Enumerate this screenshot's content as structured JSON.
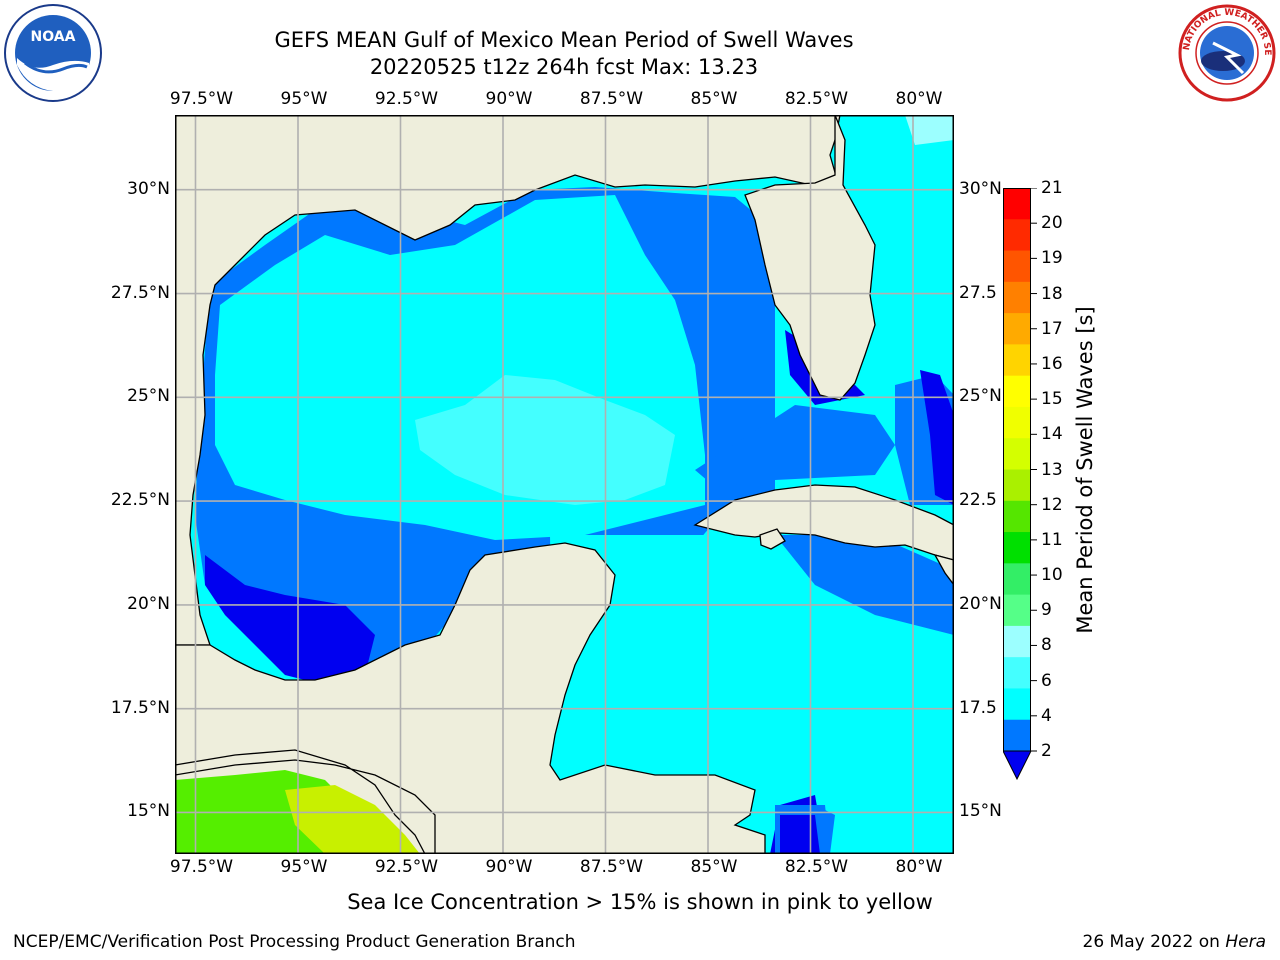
{
  "header": {
    "title": "GEFS MEAN Gulf of Mexico Mean Period of Swell Waves",
    "subtitle": "20220525 t12z 264h fcst   Max: 13.23"
  },
  "logos": {
    "left": {
      "icon": "noaa-logo",
      "text": "NOAA"
    },
    "right": {
      "icon": "nws-logo",
      "text": "NATIONAL WEATHER SERVICE"
    }
  },
  "map": {
    "lon_labels": [
      "97.5°W",
      "95°W",
      "92.5°W",
      "90°W",
      "87.5°W",
      "85°W",
      "82.5°W",
      "80°W"
    ],
    "lat_labels_left": [
      "30°N",
      "27.5°N",
      "25°N",
      "22.5°N",
      "20°N",
      "17.5°N",
      "15°N"
    ],
    "lat_labels_right": [
      "30°N",
      "27.5",
      "25°N",
      "22.5",
      "20°N",
      "17.5",
      "15°N"
    ],
    "lon_range": [
      -98,
      -79
    ],
    "lat_range": [
      14,
      31.8
    ],
    "colors": {
      "land": "#eeeedc",
      "ocean_2_4": "#0078ff",
      "ocean_lt2": "#0000f0",
      "ocean_4_6": "#00ffff",
      "ocean_6_8": "#44ffff",
      "ocean_8_9": "#9cffff",
      "ocean_11_12": "#55ee00",
      "ocean_13_14": "#c8f000",
      "grid": "#b0b0b0"
    }
  },
  "colorbar": {
    "label": "Mean Period of Swell Waves [s]",
    "ticks": [
      "21",
      "20",
      "19",
      "18",
      "17",
      "16",
      "15",
      "14",
      "13",
      "12",
      "11",
      "10",
      "9",
      "8",
      "6",
      "4",
      "2"
    ],
    "colors": [
      "#ff0000",
      "#ff2a00",
      "#ff5500",
      "#ff8000",
      "#ffaa00",
      "#ffd400",
      "#ffff00",
      "#f0ff00",
      "#d4ff00",
      "#aaf000",
      "#55e600",
      "#00e000",
      "#33ee66",
      "#55ff88",
      "#9cffff",
      "#44ffff",
      "#00ffff",
      "#0078ff"
    ],
    "under_color": "#0000f0"
  },
  "note": "Sea Ice Concentration > 15% is shown in pink to yellow",
  "footer": {
    "left": "NCEP/EMC/Verification Post Processing Product Generation Branch",
    "right_prefix": "26 May 2022 on ",
    "right_machine": "Hera"
  }
}
